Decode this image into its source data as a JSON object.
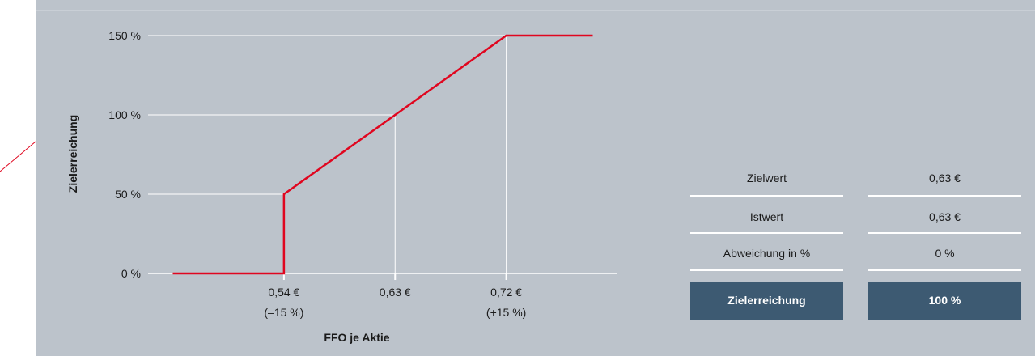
{
  "chart_data": {
    "type": "line",
    "title": "",
    "xlabel": "FFO je Aktie",
    "ylabel": "Zielerreichung",
    "y_ticks": [
      "0 %",
      "50 %",
      "100 %",
      "150 %"
    ],
    "y_tick_values": [
      0,
      50,
      100,
      150
    ],
    "x_ticks": [
      {
        "value": 0.54,
        "label": "0,54 €",
        "sublabel": "(–15 %)"
      },
      {
        "value": 0.63,
        "label": "0,63 €",
        "sublabel": ""
      },
      {
        "value": 0.72,
        "label": "0,72 €",
        "sublabel": "(+15 %)"
      }
    ],
    "xlim": [
      0.43,
      0.81
    ],
    "ylim": [
      0,
      150
    ],
    "series": [
      {
        "color": "#e0061f",
        "points": [
          {
            "x": 0.45,
            "y": 0
          },
          {
            "x": 0.54,
            "y": 0
          },
          {
            "x": 0.54,
            "y": 50
          },
          {
            "x": 0.63,
            "y": 100
          },
          {
            "x": 0.72,
            "y": 150
          },
          {
            "x": 0.79,
            "y": 150
          }
        ]
      }
    ],
    "grid": true
  },
  "table": {
    "rows": [
      {
        "label": "Zielwert",
        "value": "0,63 €"
      },
      {
        "label": "Istwert",
        "value": "0,63 €"
      },
      {
        "label": "Abweichung in %",
        "value": "0 %"
      }
    ],
    "total": {
      "label": "Zielerreichung",
      "value": "100 %"
    }
  },
  "colors": {
    "background": "#bcc3cb",
    "line": "#e0061f",
    "grid": "#ffffff",
    "total_fill": "#3d5a72"
  }
}
